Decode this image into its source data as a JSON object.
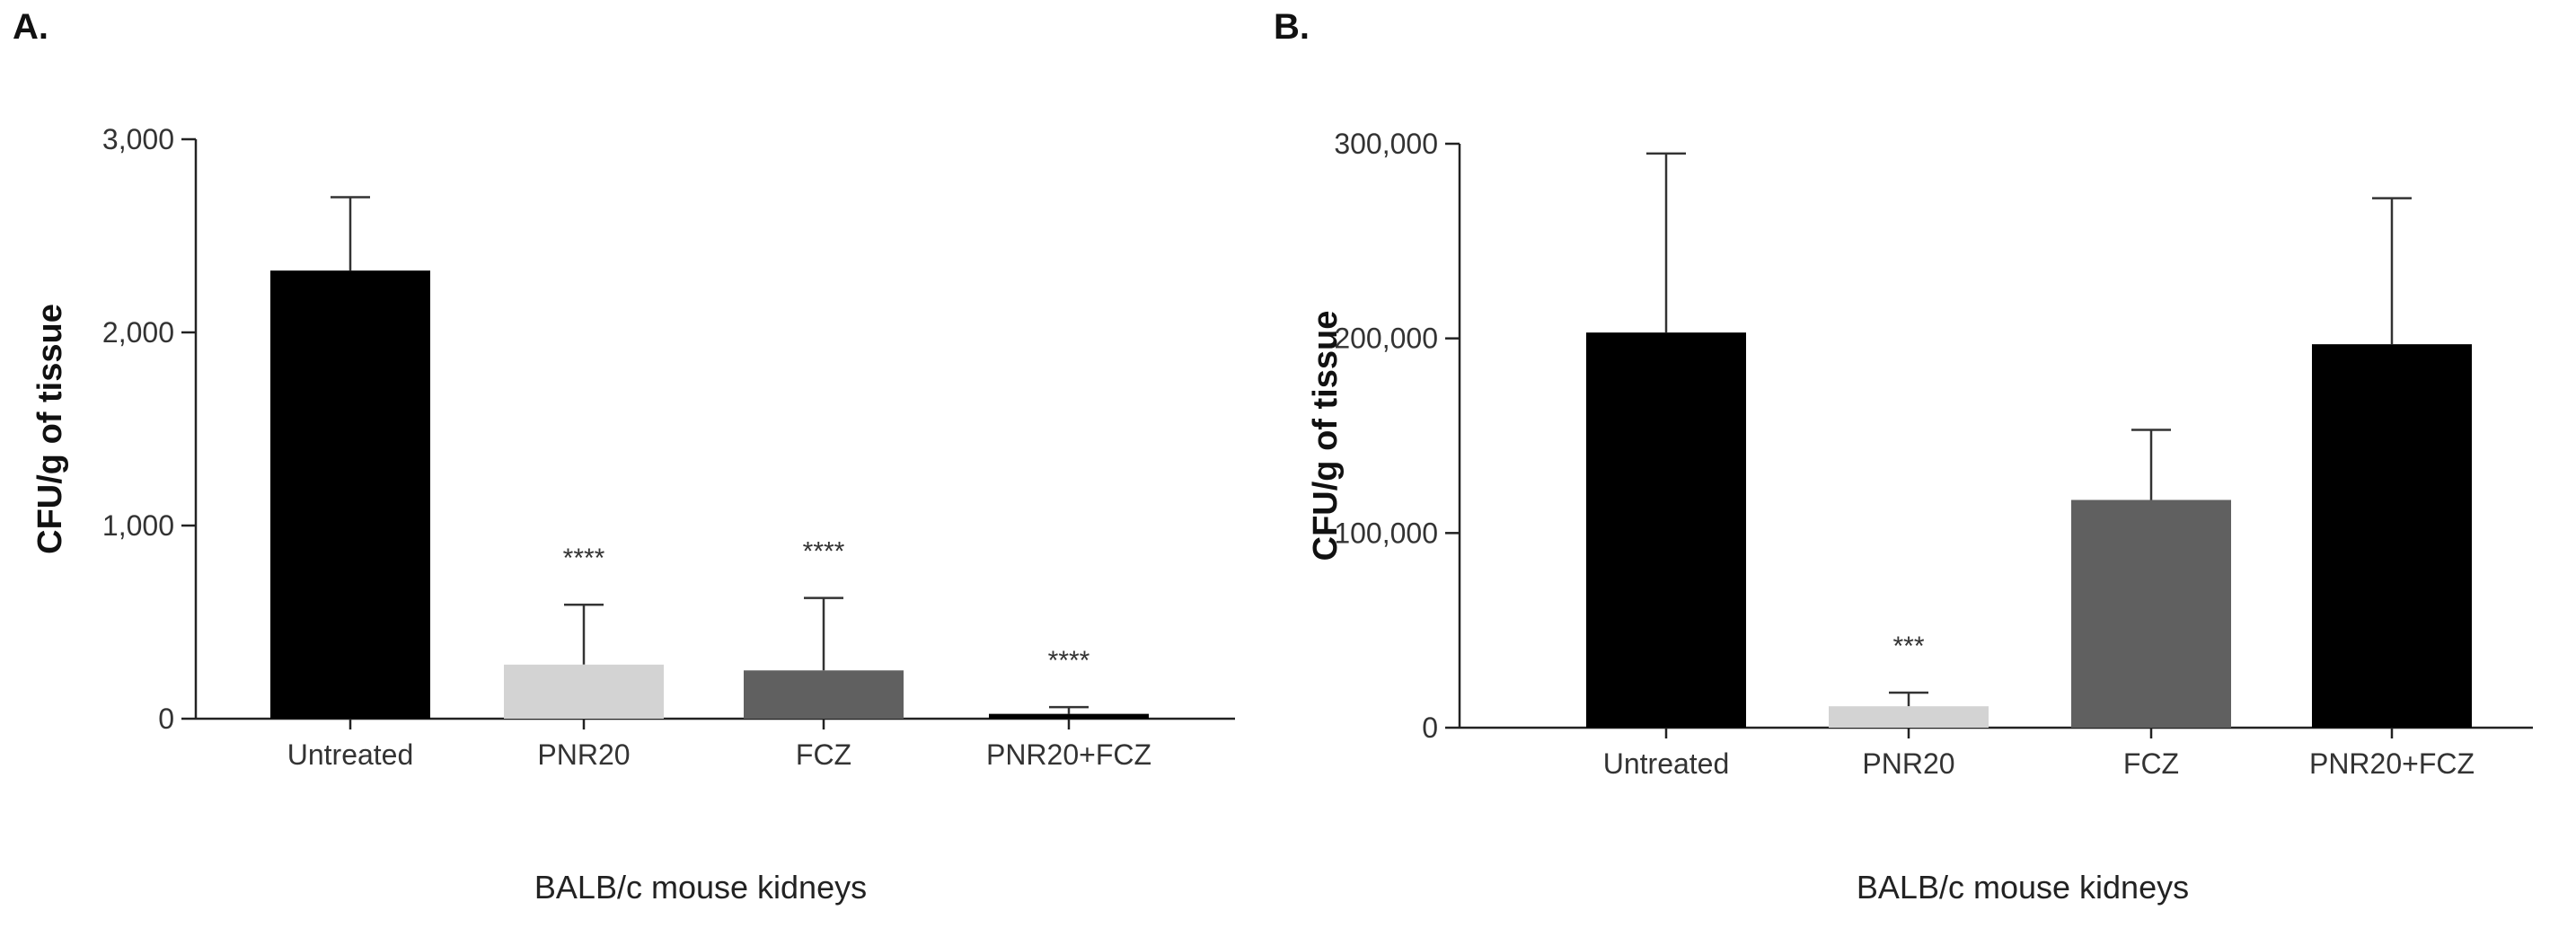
{
  "chart_data": [
    {
      "panel_label": "A.",
      "type": "bar",
      "categories": [
        "Untreated",
        "PNR20",
        "FCZ",
        "PNR20+FCZ"
      ],
      "values": [
        2320,
        280,
        250,
        25
      ],
      "error_upper": [
        2700,
        590,
        625,
        60
      ],
      "significance": [
        "",
        "****",
        "****",
        "****"
      ],
      "bar_colors": [
        "#000000",
        "#d3d3d3",
        "#606060",
        "#000000"
      ],
      "ylabel": "CFU/g of tissue",
      "xlabel": "BALB/c mouse kidneys",
      "ylim": [
        0,
        3000
      ],
      "yticks": [
        0,
        1000,
        2000,
        3000
      ],
      "ytick_labels": [
        "0",
        "1,000",
        "2,000",
        "3,000"
      ],
      "grid": false
    },
    {
      "panel_label": "B.",
      "type": "bar",
      "categories": [
        "Untreated",
        "PNR20",
        "FCZ",
        "PNR20+FCZ"
      ],
      "values": [
        203000,
        11000,
        117000,
        197000
      ],
      "error_upper": [
        295000,
        18000,
        153000,
        272000
      ],
      "significance": [
        "",
        "***",
        "",
        ""
      ],
      "bar_colors": [
        "#000000",
        "#d3d3d3",
        "#606060",
        "#000000"
      ],
      "ylabel": "CFU/g of tissue",
      "xlabel": "BALB/c mouse kidneys",
      "ylim": [
        0,
        300000
      ],
      "yticks": [
        0,
        100000,
        200000,
        300000
      ],
      "ytick_labels": [
        "0",
        "100,000",
        "200,000",
        "300,000"
      ],
      "grid": false
    }
  ]
}
